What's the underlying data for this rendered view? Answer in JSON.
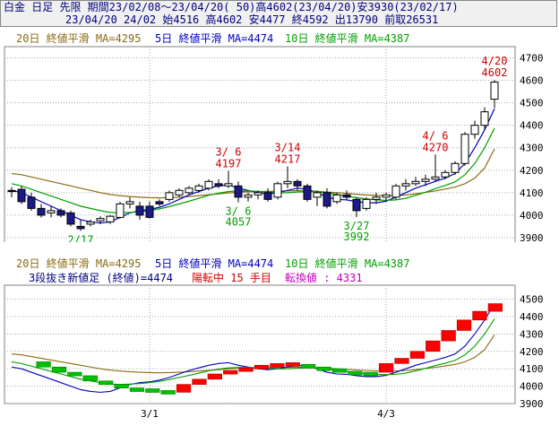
{
  "header": {
    "line1": "白金 日足 先限 期間23/02/08～23/04/20( 50)高4602(23/04/20)安3930(23/02/17)",
    "line2": "23/04/20 24/02 始4516 高4602 安4477 終4592 出13790 前取26531"
  },
  "colors": {
    "ma20": "#8a6a10",
    "ma5": "#0000c0",
    "ma10": "#00a000",
    "up_candle": "#ffffff",
    "down_candle": "#1a1a8a",
    "up_block": "#ff0000",
    "down_block": "#00c000",
    "annot_high": "#d00000",
    "annot_low": "#00a000",
    "status": "#d00000",
    "turn": "#c000c0"
  },
  "legend": {
    "ma20": "20日 終値平滑 MA=4295",
    "ma5": "5日 終値平滑 MA=4474",
    "ma10": "10日 終値平滑 MA=4387"
  },
  "lower_info": {
    "label": "3段抜き新値足 (終値)=4474",
    "status": "陽転中  15 手目",
    "turn": "転換値 : 4331"
  },
  "annotations": [
    {
      "date": "3/ 6",
      "value": "4197",
      "kind": "high",
      "anchor": 22
    },
    {
      "date": "3/14",
      "value": "4217",
      "kind": "high",
      "anchor": 28
    },
    {
      "date": "4/ 6",
      "value": "4270",
      "kind": "high",
      "anchor": 43
    },
    {
      "date": "4/20",
      "value": "4602",
      "kind": "high",
      "anchor": 49
    },
    {
      "date": "2/17",
      "value": "3930",
      "kind": "low",
      "anchor": 7
    },
    {
      "date": "3/ 6",
      "value": "4057",
      "kind": "low",
      "anchor": 23
    },
    {
      "date": "3/27",
      "value": "3992",
      "kind": "low",
      "anchor": 35
    }
  ],
  "chart_data": [
    {
      "type": "candlestick",
      "ylim": [
        3800,
        4750
      ],
      "yticks": [
        3800,
        3900,
        4000,
        4100,
        4200,
        4300,
        4400,
        4500,
        4600,
        4700
      ],
      "xticks": [
        {
          "label": "3/1",
          "index": 14
        },
        {
          "label": "4/3",
          "index": 38
        }
      ],
      "candles": [
        {
          "o": 4110,
          "h": 4125,
          "l": 4080,
          "c": 4105
        },
        {
          "o": 4115,
          "h": 4130,
          "l": 4050,
          "c": 4060
        },
        {
          "o": 4080,
          "h": 4100,
          "l": 4020,
          "c": 4030
        },
        {
          "o": 4030,
          "h": 4050,
          "l": 3990,
          "c": 4000
        },
        {
          "o": 4010,
          "h": 4040,
          "l": 3990,
          "c": 4020
        },
        {
          "o": 4020,
          "h": 4030,
          "l": 3990,
          "c": 4000
        },
        {
          "o": 4010,
          "h": 4020,
          "l": 3950,
          "c": 3960
        },
        {
          "o": 3950,
          "h": 3980,
          "l": 3930,
          "c": 3940
        },
        {
          "o": 3960,
          "h": 3980,
          "l": 3950,
          "c": 3970
        },
        {
          "o": 3975,
          "h": 3995,
          "l": 3960,
          "c": 3985
        },
        {
          "o": 3970,
          "h": 4000,
          "l": 3960,
          "c": 3995
        },
        {
          "o": 3990,
          "h": 4060,
          "l": 3985,
          "c": 4050
        },
        {
          "o": 4050,
          "h": 4080,
          "l": 4030,
          "c": 4060
        },
        {
          "o": 4040,
          "h": 4060,
          "l": 3980,
          "c": 4000
        },
        {
          "o": 4040,
          "h": 4060,
          "l": 3985,
          "c": 3990
        },
        {
          "o": 4060,
          "h": 4070,
          "l": 4040,
          "c": 4050
        },
        {
          "o": 4070,
          "h": 4110,
          "l": 4060,
          "c": 4100
        },
        {
          "o": 4090,
          "h": 4120,
          "l": 4080,
          "c": 4110
        },
        {
          "o": 4100,
          "h": 4130,
          "l": 4090,
          "c": 4120
        },
        {
          "o": 4110,
          "h": 4140,
          "l": 4100,
          "c": 4130
        },
        {
          "o": 4120,
          "h": 4160,
          "l": 4110,
          "c": 4150
        },
        {
          "o": 4140,
          "h": 4160,
          "l": 4120,
          "c": 4130
        },
        {
          "o": 4130,
          "h": 4197,
          "l": 4120,
          "c": 4140
        },
        {
          "o": 4130,
          "h": 4150,
          "l": 4057,
          "c": 4080
        },
        {
          "o": 4080,
          "h": 4100,
          "l": 4060,
          "c": 4090
        },
        {
          "o": 4090,
          "h": 4110,
          "l": 4070,
          "c": 4100
        },
        {
          "o": 4100,
          "h": 4120,
          "l": 4060,
          "c": 4070
        },
        {
          "o": 4080,
          "h": 4150,
          "l": 4070,
          "c": 4140
        },
        {
          "o": 4140,
          "h": 4217,
          "l": 4120,
          "c": 4150
        },
        {
          "o": 4150,
          "h": 4160,
          "l": 4110,
          "c": 4130
        },
        {
          "o": 4130,
          "h": 4140,
          "l": 4060,
          "c": 4070
        },
        {
          "o": 4080,
          "h": 4110,
          "l": 4040,
          "c": 4100
        },
        {
          "o": 4100,
          "h": 4120,
          "l": 4030,
          "c": 4040
        },
        {
          "o": 4060,
          "h": 4100,
          "l": 4050,
          "c": 4090
        },
        {
          "o": 4090,
          "h": 4110,
          "l": 4070,
          "c": 4080
        },
        {
          "o": 4070,
          "h": 4080,
          "l": 3992,
          "c": 4020
        },
        {
          "o": 4030,
          "h": 4080,
          "l": 4020,
          "c": 4070
        },
        {
          "o": 4070,
          "h": 4100,
          "l": 4050,
          "c": 4080
        },
        {
          "o": 4080,
          "h": 4100,
          "l": 4060,
          "c": 4090
        },
        {
          "o": 4080,
          "h": 4140,
          "l": 4070,
          "c": 4130
        },
        {
          "o": 4130,
          "h": 4160,
          "l": 4110,
          "c": 4140
        },
        {
          "o": 4140,
          "h": 4170,
          "l": 4130,
          "c": 4150
        },
        {
          "o": 4150,
          "h": 4180,
          "l": 4130,
          "c": 4160
        },
        {
          "o": 4160,
          "h": 4270,
          "l": 4150,
          "c": 4170
        },
        {
          "o": 4170,
          "h": 4200,
          "l": 4160,
          "c": 4190
        },
        {
          "o": 4190,
          "h": 4240,
          "l": 4180,
          "c": 4230
        },
        {
          "o": 4230,
          "h": 4370,
          "l": 4220,
          "c": 4360
        },
        {
          "o": 4360,
          "h": 4420,
          "l": 4340,
          "c": 4400
        },
        {
          "o": 4400,
          "h": 4480,
          "l": 4380,
          "c": 4460
        },
        {
          "o": 4516,
          "h": 4602,
          "l": 4477,
          "c": 4592
        }
      ],
      "series": [
        {
          "name": "20日 終値平滑",
          "color": "#8a6a10",
          "values": [
            4185,
            4180,
            4170,
            4160,
            4150,
            4140,
            4130,
            4120,
            4110,
            4100,
            4092,
            4087,
            4083,
            4080,
            4078,
            4077,
            4078,
            4080,
            4083,
            4087,
            4091,
            4095,
            4099,
            4102,
            4104,
            4105,
            4106,
            4107,
            4108,
            4109,
            4108,
            4106,
            4103,
            4100,
            4097,
            4093,
            4090,
            4088,
            4087,
            4087,
            4090,
            4095,
            4101,
            4108,
            4116,
            4125,
            4140,
            4165,
            4210,
            4295
          ]
        },
        {
          "name": "5日 終値平滑",
          "color": "#0000c0",
          "values": [
            4110,
            4100,
            4080,
            4060,
            4040,
            4020,
            4000,
            3980,
            3970,
            3965,
            3970,
            3990,
            4010,
            4020,
            4025,
            4035,
            4050,
            4070,
            4090,
            4105,
            4120,
            4130,
            4135,
            4120,
            4110,
            4100,
            4095,
            4100,
            4110,
            4120,
            4115,
            4100,
            4080,
            4070,
            4068,
            4060,
            4055,
            4055,
            4062,
            4080,
            4100,
            4120,
            4135,
            4150,
            4165,
            4185,
            4230,
            4300,
            4380,
            4474
          ]
        },
        {
          "name": "10日 終値平滑",
          "color": "#00a000",
          "values": [
            4140,
            4130,
            4115,
            4100,
            4085,
            4070,
            4055,
            4040,
            4030,
            4020,
            4012,
            4010,
            4012,
            4015,
            4020,
            4028,
            4038,
            4050,
            4062,
            4075,
            4088,
            4098,
            4105,
            4108,
            4108,
            4106,
            4103,
            4100,
            4100,
            4103,
            4105,
            4104,
            4100,
            4092,
            4085,
            4078,
            4072,
            4068,
            4066,
            4068,
            4075,
            4088,
            4102,
            4118,
            4132,
            4148,
            4180,
            4230,
            4300,
            4387
          ]
        }
      ]
    },
    {
      "type": "new-price-blocks",
      "ylim": [
        3900,
        4580
      ],
      "yticks": [
        3900,
        4000,
        4100,
        4200,
        4300,
        4400,
        4500
      ],
      "xticks": [
        {
          "label": "3/1",
          "index": 14
        },
        {
          "label": "4/3",
          "index": 38
        }
      ],
      "blocks": [
        {
          "i": 2,
          "lo": 4110,
          "hi": 4140,
          "up": false
        },
        {
          "i": 3,
          "lo": 4080,
          "hi": 4110,
          "up": false
        },
        {
          "i": 4,
          "lo": 4060,
          "hi": 4080,
          "up": false
        },
        {
          "i": 5,
          "lo": 4030,
          "hi": 4060,
          "up": false
        },
        {
          "i": 6,
          "lo": 4010,
          "hi": 4030,
          "up": false
        },
        {
          "i": 7,
          "lo": 3990,
          "hi": 4010,
          "up": false
        },
        {
          "i": 8,
          "lo": 3975,
          "hi": 3990,
          "up": false
        },
        {
          "i": 9,
          "lo": 3970,
          "hi": 3985,
          "up": false
        },
        {
          "i": 10,
          "lo": 3965,
          "hi": 3975,
          "up": false
        },
        {
          "i": 11,
          "lo": 3965,
          "hi": 4010,
          "up": true
        },
        {
          "i": 12,
          "lo": 4010,
          "hi": 4040,
          "up": true
        },
        {
          "i": 13,
          "lo": 4040,
          "hi": 4070,
          "up": true
        },
        {
          "i": 14,
          "lo": 4070,
          "hi": 4090,
          "up": true
        },
        {
          "i": 15,
          "lo": 4090,
          "hi": 4105,
          "up": true
        },
        {
          "i": 16,
          "lo": 4105,
          "hi": 4120,
          "up": true
        },
        {
          "i": 17,
          "lo": 4120,
          "hi": 4130,
          "up": true
        },
        {
          "i": 18,
          "lo": 4125,
          "hi": 4135,
          "up": true
        },
        {
          "i": 19,
          "lo": 4110,
          "hi": 4125,
          "up": false
        },
        {
          "i": 20,
          "lo": 4100,
          "hi": 4110,
          "up": false
        },
        {
          "i": 21,
          "lo": 4085,
          "hi": 4100,
          "up": false
        },
        {
          "i": 22,
          "lo": 4075,
          "hi": 4085,
          "up": false
        },
        {
          "i": 23,
          "lo": 4070,
          "hi": 4080,
          "up": false
        },
        {
          "i": 24,
          "lo": 4080,
          "hi": 4130,
          "up": true
        },
        {
          "i": 25,
          "lo": 4130,
          "hi": 4160,
          "up": true
        },
        {
          "i": 26,
          "lo": 4160,
          "hi": 4200,
          "up": true
        },
        {
          "i": 27,
          "lo": 4200,
          "hi": 4260,
          "up": true
        },
        {
          "i": 28,
          "lo": 4260,
          "hi": 4320,
          "up": true
        },
        {
          "i": 29,
          "lo": 4320,
          "hi": 4380,
          "up": true
        },
        {
          "i": 30,
          "lo": 4380,
          "hi": 4430,
          "up": true
        },
        {
          "i": 31,
          "lo": 4430,
          "hi": 4474,
          "up": true
        }
      ]
    }
  ]
}
